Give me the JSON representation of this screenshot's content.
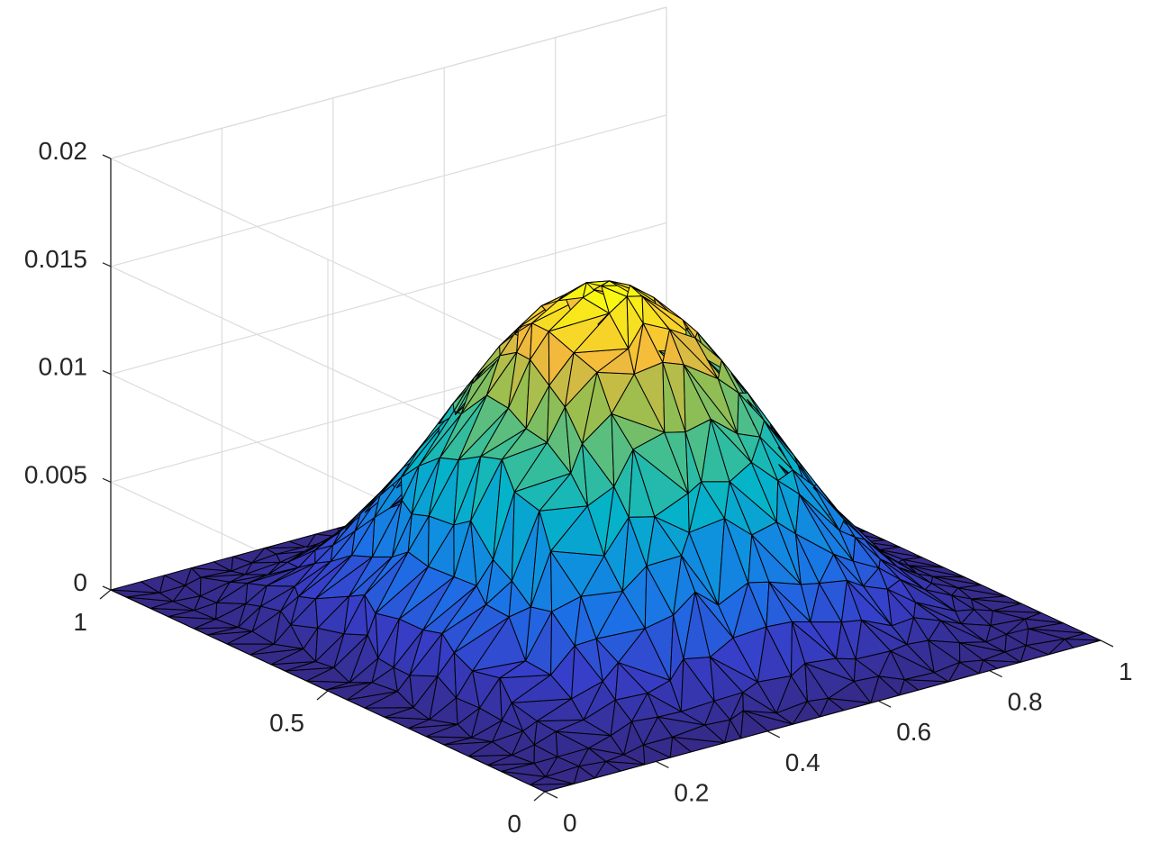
{
  "chart_data": {
    "type": "surface",
    "title": "",
    "xlabel": "",
    "ylabel": "",
    "zlabel": "",
    "xlim": [
      0,
      1
    ],
    "ylim": [
      0,
      1
    ],
    "zlim": [
      0,
      0.02
    ],
    "grid": true,
    "colormap": "parula",
    "mesh": "unstructured triangular (approx. 22 x 22 nodes)",
    "surface_function": "peak * sin(pi*x)^2 * sin(pi*y)^2",
    "peak": 0.0153,
    "x_ticks": [
      {
        "value": 0,
        "label": "0"
      },
      {
        "value": 0.2,
        "label": "0.2"
      },
      {
        "value": 0.4,
        "label": "0.4"
      },
      {
        "value": 0.6,
        "label": "0.6"
      },
      {
        "value": 0.8,
        "label": "0.8"
      },
      {
        "value": 1,
        "label": "1"
      }
    ],
    "y_ticks": [
      {
        "value": 0,
        "label": "0"
      },
      {
        "value": 0.5,
        "label": "0.5"
      },
      {
        "value": 1,
        "label": "1"
      }
    ],
    "z_ticks": [
      {
        "value": 0,
        "label": "0"
      },
      {
        "value": 0.005,
        "label": "0.005"
      },
      {
        "value": 0.01,
        "label": "0.01"
      },
      {
        "value": 0.015,
        "label": "0.015"
      },
      {
        "value": 0.02,
        "label": "0.02"
      }
    ]
  }
}
